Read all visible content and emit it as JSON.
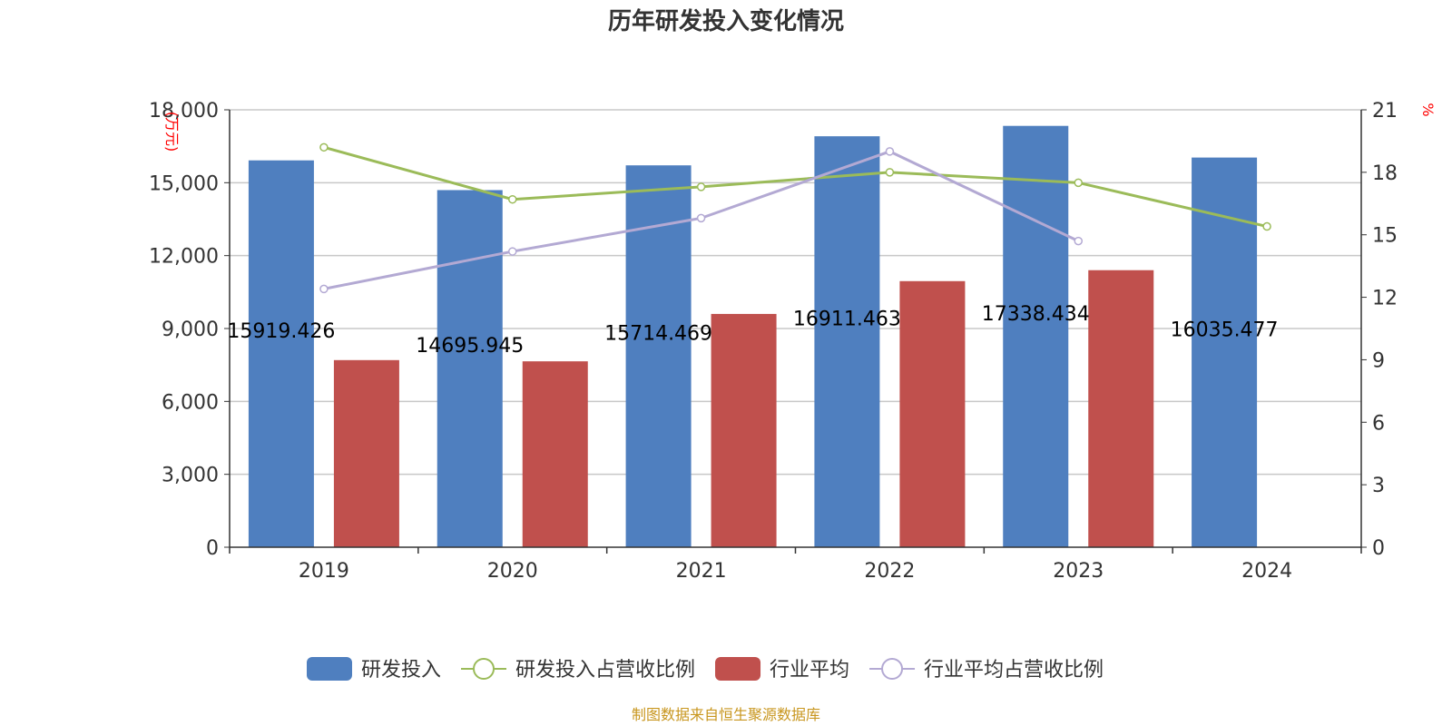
{
  "chart_data": {
    "type": "bar",
    "title": "历年研发投入变化情况",
    "categories": [
      "2019",
      "2020",
      "2021",
      "2022",
      "2023",
      "2024"
    ],
    "series": [
      {
        "name": "研发投入",
        "type": "bar",
        "axis": "left",
        "color": "#4f7fbf",
        "values": [
          15919.426,
          14695.945,
          15714.469,
          16911.463,
          17338.434,
          16035.477
        ],
        "labels": [
          "15919.426",
          "14695.945",
          "15714.469",
          "16911.463",
          "17338.434",
          "16035.477"
        ]
      },
      {
        "name": "研发投入占营收比例",
        "type": "line",
        "axis": "right",
        "color": "#9bbb59",
        "values": [
          19.2,
          16.7,
          17.3,
          18.0,
          17.5,
          15.4
        ]
      },
      {
        "name": "行业平均",
        "type": "bar",
        "axis": "left",
        "color": "#c0504d",
        "values": [
          7700,
          7650,
          9600,
          10950,
          11400,
          null
        ]
      },
      {
        "name": "行业平均占营收比例",
        "type": "line",
        "axis": "right",
        "color": "#b3a9d3",
        "values": [
          12.4,
          14.2,
          15.8,
          19.0,
          14.7,
          null
        ]
      }
    ],
    "y_left": {
      "unit": "(万元)",
      "ylim": [
        0,
        18000
      ],
      "ticks": [
        "0",
        "3,000",
        "6,000",
        "9,000",
        "12,000",
        "15,000",
        "18,000"
      ]
    },
    "y_right": {
      "unit": "%",
      "ylim": [
        0,
        21
      ],
      "ticks": [
        "0",
        "3",
        "6",
        "9",
        "12",
        "15",
        "18",
        "21"
      ]
    },
    "grid": true,
    "legend_position": "bottom"
  },
  "source_note": "制图数据来自恒生聚源数据库"
}
